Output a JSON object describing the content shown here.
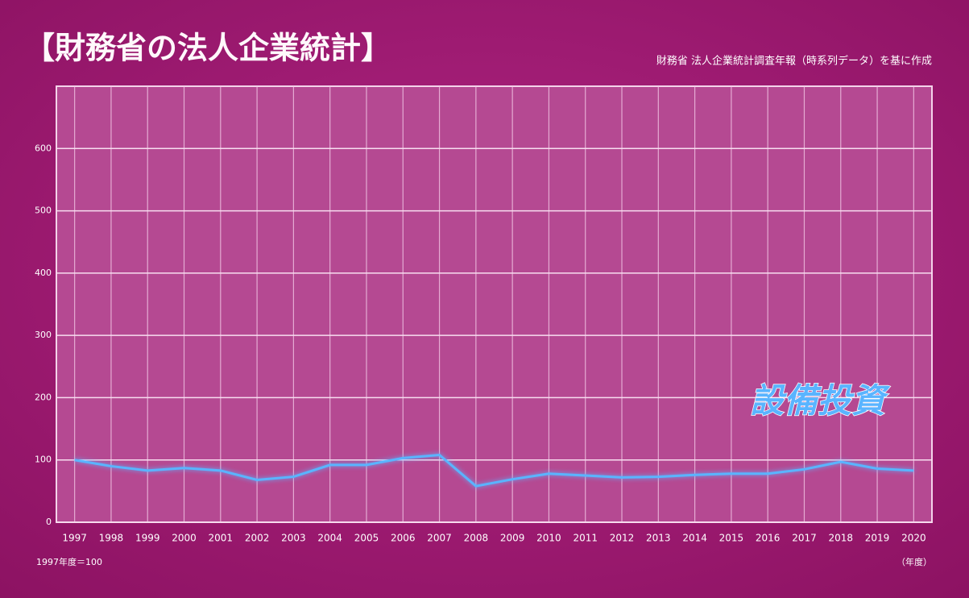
{
  "chart_data": {
    "type": "line",
    "title": "【財務省の法人企業統計】",
    "subtitle": "財務省 法人企業統計調査年報（時系列データ）を基に作成",
    "note": "1997年度＝100",
    "x_label": "（年度）",
    "categories": [
      "1997",
      "1998",
      "1999",
      "2000",
      "2001",
      "2002",
      "2003",
      "2004",
      "2005",
      "2006",
      "2007",
      "2008",
      "2009",
      "2010",
      "2011",
      "2012",
      "2013",
      "2014",
      "2015",
      "2016",
      "2017",
      "2018",
      "2019",
      "2020"
    ],
    "series": [
      {
        "name": "設備投資",
        "color": "#5ab4ff",
        "values": [
          100,
          90,
          83,
          87,
          83,
          68,
          73,
          92,
          92,
          103,
          108,
          58,
          69,
          78,
          75,
          72,
          73,
          76,
          78,
          78,
          85,
          97,
          86,
          83
        ]
      }
    ],
    "ylim": [
      0,
      700
    ],
    "yticks": [
      0,
      100,
      200,
      300,
      400,
      500,
      600
    ],
    "grid": true
  }
}
